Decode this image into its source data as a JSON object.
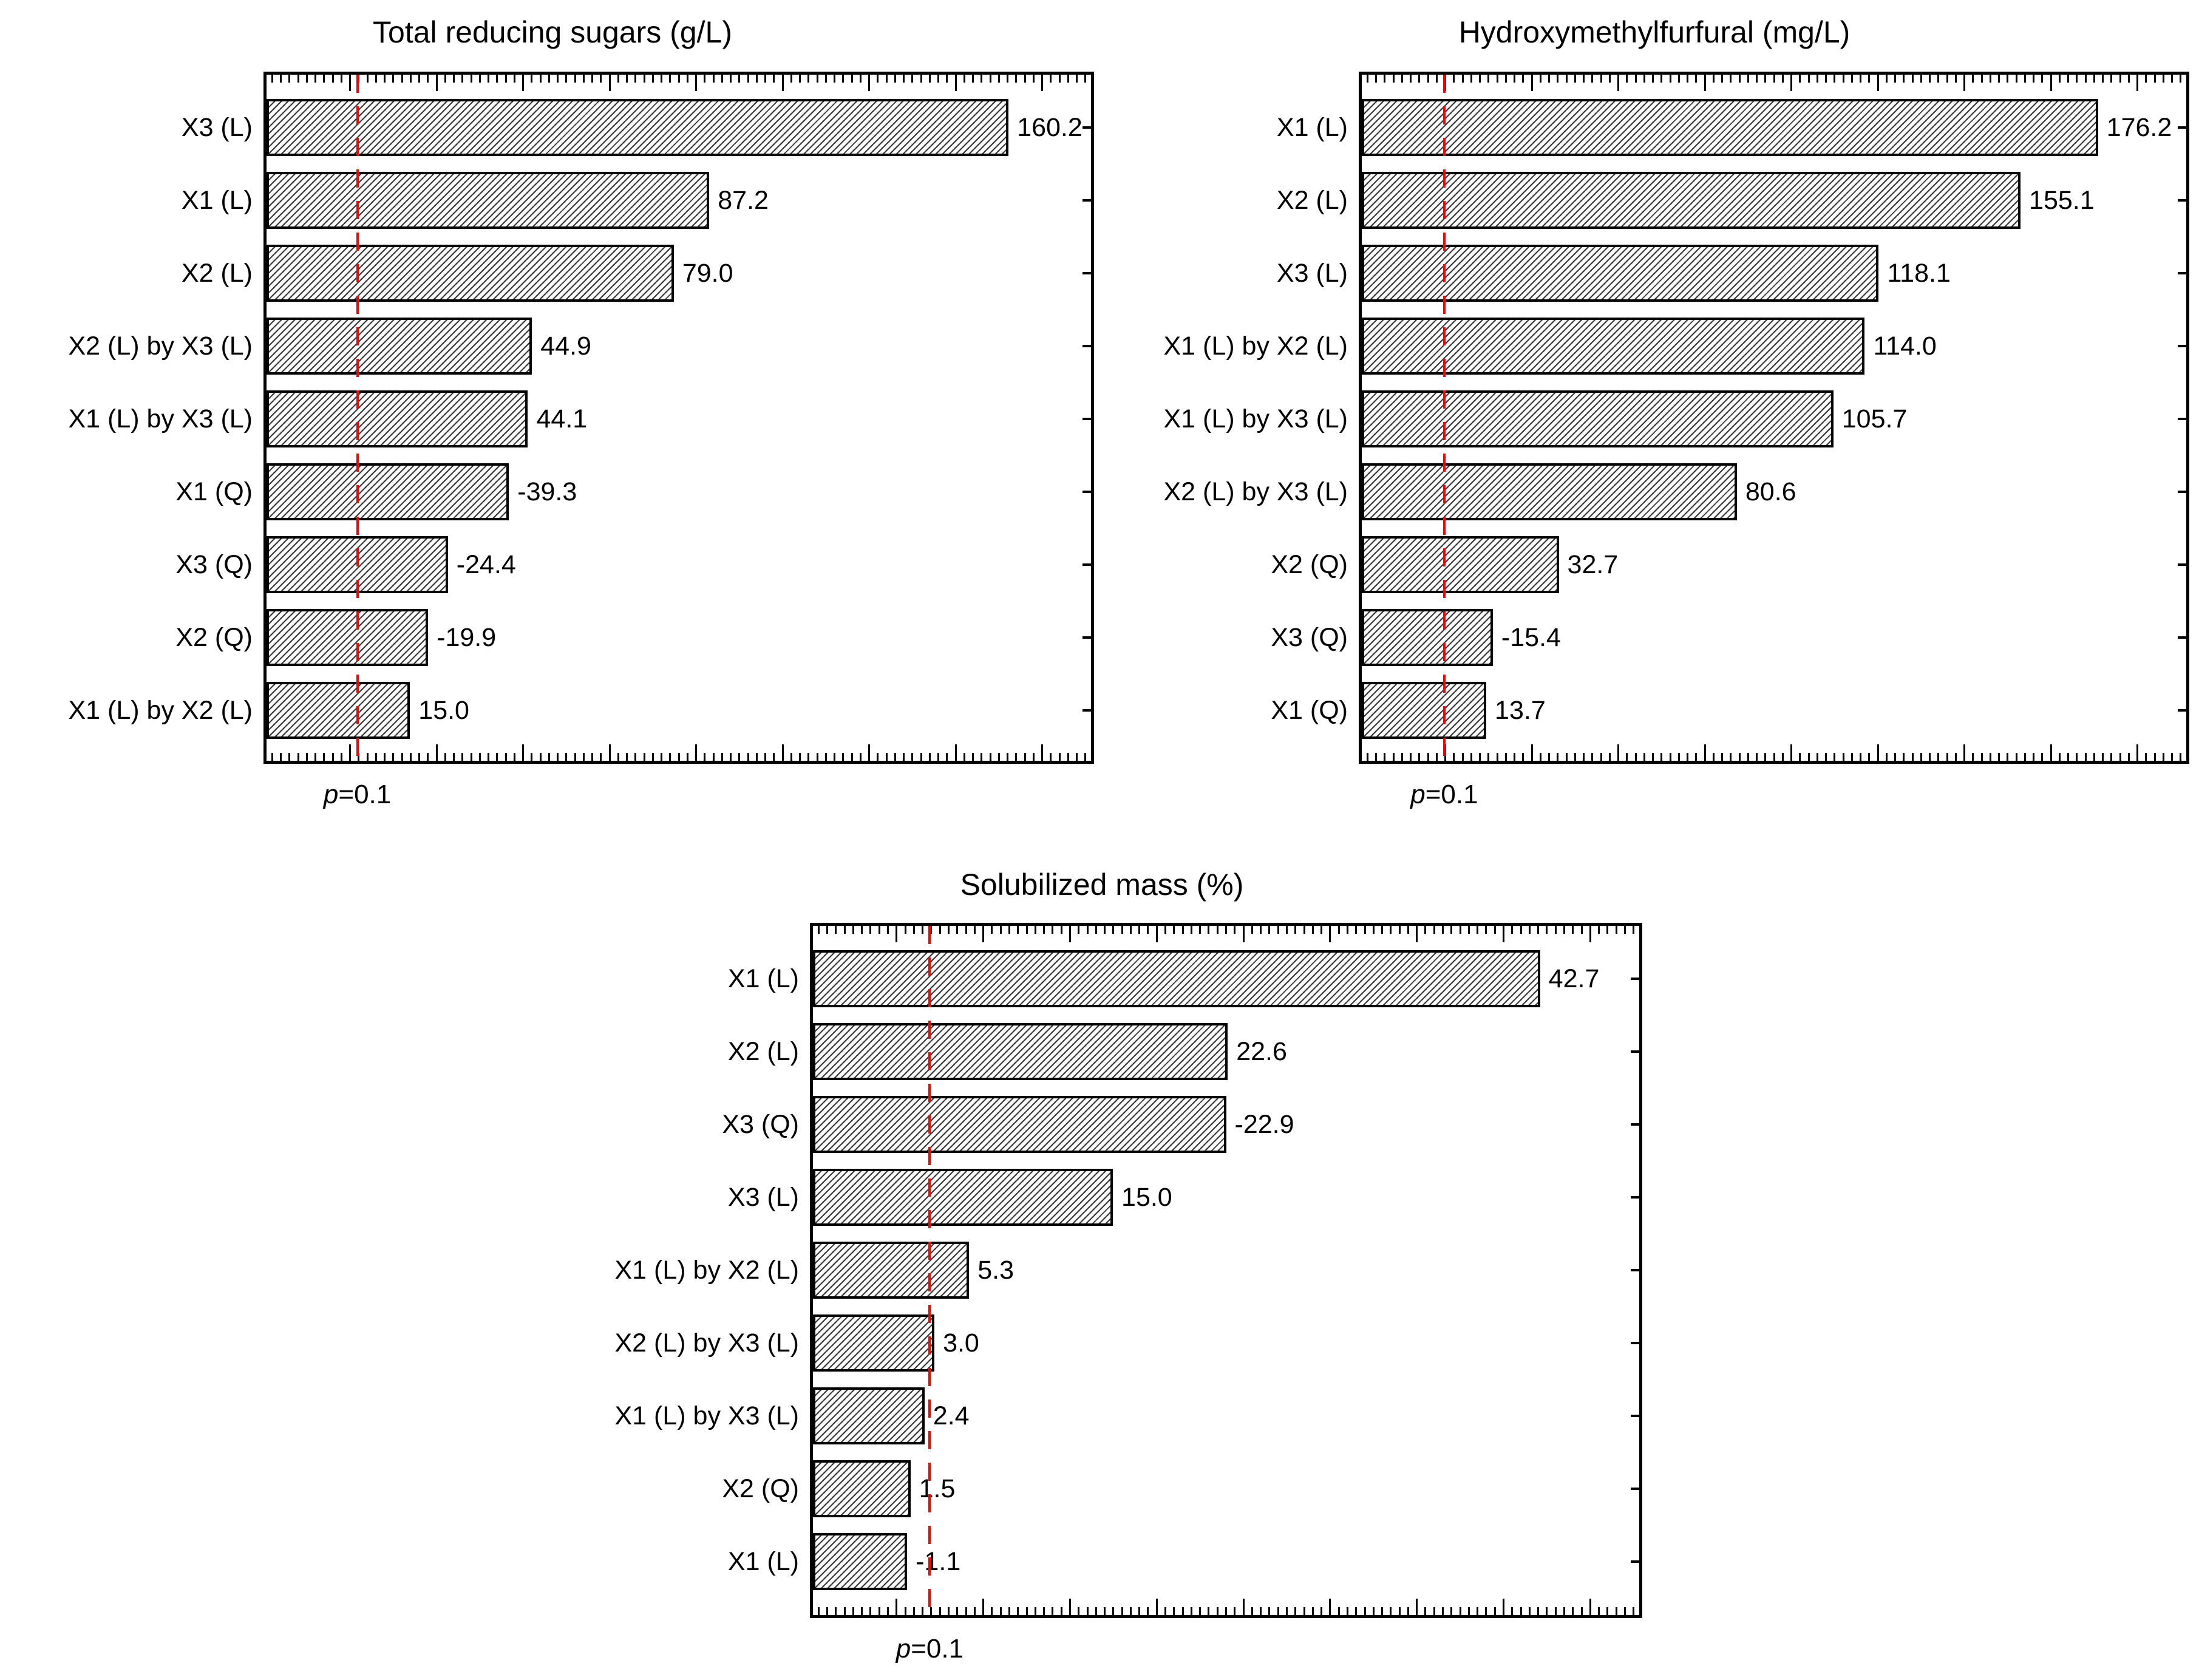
{
  "threshold_color": "#ff0000",
  "bar_border_color": "#000000",
  "hatch_line_color": "#383838",
  "frame_color": "#000000",
  "text_color": "#000000",
  "background_color": "#ffffff",
  "chart_data": [
    {
      "type": "bar",
      "orientation": "horizontal",
      "title": "Total reducing sugars (g/L)",
      "threshold_label": "p=0.1",
      "threshold_frac": 0.113,
      "grid": false,
      "rows": [
        {
          "label": "X3 (L)",
          "value": 160.2,
          "value_label": "160.2",
          "bar_frac": 0.9
        },
        {
          "label": "X1 (L)",
          "value": 87.2,
          "value_label": "87.2",
          "bar_frac": 0.537
        },
        {
          "label": "X2 (L)",
          "value": 79.0,
          "value_label": "79.0",
          "bar_frac": 0.494
        },
        {
          "label": "X2 (L) by X3 (L)",
          "value": 44.9,
          "value_label": "44.9",
          "bar_frac": 0.322
        },
        {
          "label": "X1 (L) by X3 (L)",
          "value": 44.1,
          "value_label": "44.1",
          "bar_frac": 0.317
        },
        {
          "label": "X1 (Q)",
          "value": -39.3,
          "value_label": "-39.3",
          "bar_frac": 0.294
        },
        {
          "label": "X3 (Q)",
          "value": -24.4,
          "value_label": "-24.4",
          "bar_frac": 0.22
        },
        {
          "label": "X2 (Q)",
          "value": -19.9,
          "value_label": "-19.9",
          "bar_frac": 0.196
        },
        {
          "label": "X1 (L) by X2 (L)",
          "value": 15.0,
          "value_label": "15.0",
          "bar_frac": 0.174
        }
      ]
    },
    {
      "type": "bar",
      "orientation": "horizontal",
      "title": "Hydroxymethylfurfural (mg/L)",
      "threshold_label": "p=0.1",
      "threshold_frac": 0.103,
      "grid": false,
      "rows": [
        {
          "label": "X1 (L)",
          "value": 176.2,
          "value_label": "176.2",
          "bar_frac": 0.893
        },
        {
          "label": "X2 (L)",
          "value": 155.1,
          "value_label": "155.1",
          "bar_frac": 0.799
        },
        {
          "label": "X3 (L)",
          "value": 118.1,
          "value_label": "118.1",
          "bar_frac": 0.627
        },
        {
          "label": "X1 (L) by X2 (L)",
          "value": 114.0,
          "value_label": "114.0",
          "bar_frac": 0.61
        },
        {
          "label": "X1 (L) by X3 (L)",
          "value": 105.7,
          "value_label": "105.7",
          "bar_frac": 0.572
        },
        {
          "label": "X2 (L) by X3 (L)",
          "value": 80.6,
          "value_label": "80.6",
          "bar_frac": 0.455
        },
        {
          "label": "X2 (Q)",
          "value": 32.7,
          "value_label": "32.7",
          "bar_frac": 0.239
        },
        {
          "label": "X3 (Q)",
          "value": -15.4,
          "value_label": "-15.4",
          "bar_frac": 0.159
        },
        {
          "label": "X1 (Q)",
          "value": 13.7,
          "value_label": "13.7",
          "bar_frac": 0.151
        }
      ]
    },
    {
      "type": "bar",
      "orientation": "horizontal",
      "title": "Solubilized mass (%)",
      "threshold_label": "p=0.1",
      "threshold_frac": 0.144,
      "grid": false,
      "rows": [
        {
          "label": "X1 (L)",
          "value": 42.7,
          "value_label": "42.7",
          "bar_frac": 0.88
        },
        {
          "label": "X2 (L)",
          "value": 22.6,
          "value_label": "22.6",
          "bar_frac": 0.502
        },
        {
          "label": "X3 (Q)",
          "value": -22.9,
          "value_label": "-22.9",
          "bar_frac": 0.5
        },
        {
          "label": "X3 (L)",
          "value": 15.0,
          "value_label": "15.0",
          "bar_frac": 0.363
        },
        {
          "label": "X1 (L) by X2 (L)",
          "value": 5.3,
          "value_label": "5.3",
          "bar_frac": 0.189
        },
        {
          "label": "X2 (L) by X3 (L)",
          "value": 3.0,
          "value_label": "3.0",
          "bar_frac": 0.147
        },
        {
          "label": "X1 (L) by X3 (L)",
          "value": 2.4,
          "value_label": "2.4",
          "bar_frac": 0.135
        },
        {
          "label": "X2 (Q)",
          "value": 1.5,
          "value_label": "1.5",
          "bar_frac": 0.118
        },
        {
          "label": "X1 (L)",
          "value": -1.1,
          "value_label": "-1.1",
          "bar_frac": 0.114
        }
      ]
    }
  ]
}
